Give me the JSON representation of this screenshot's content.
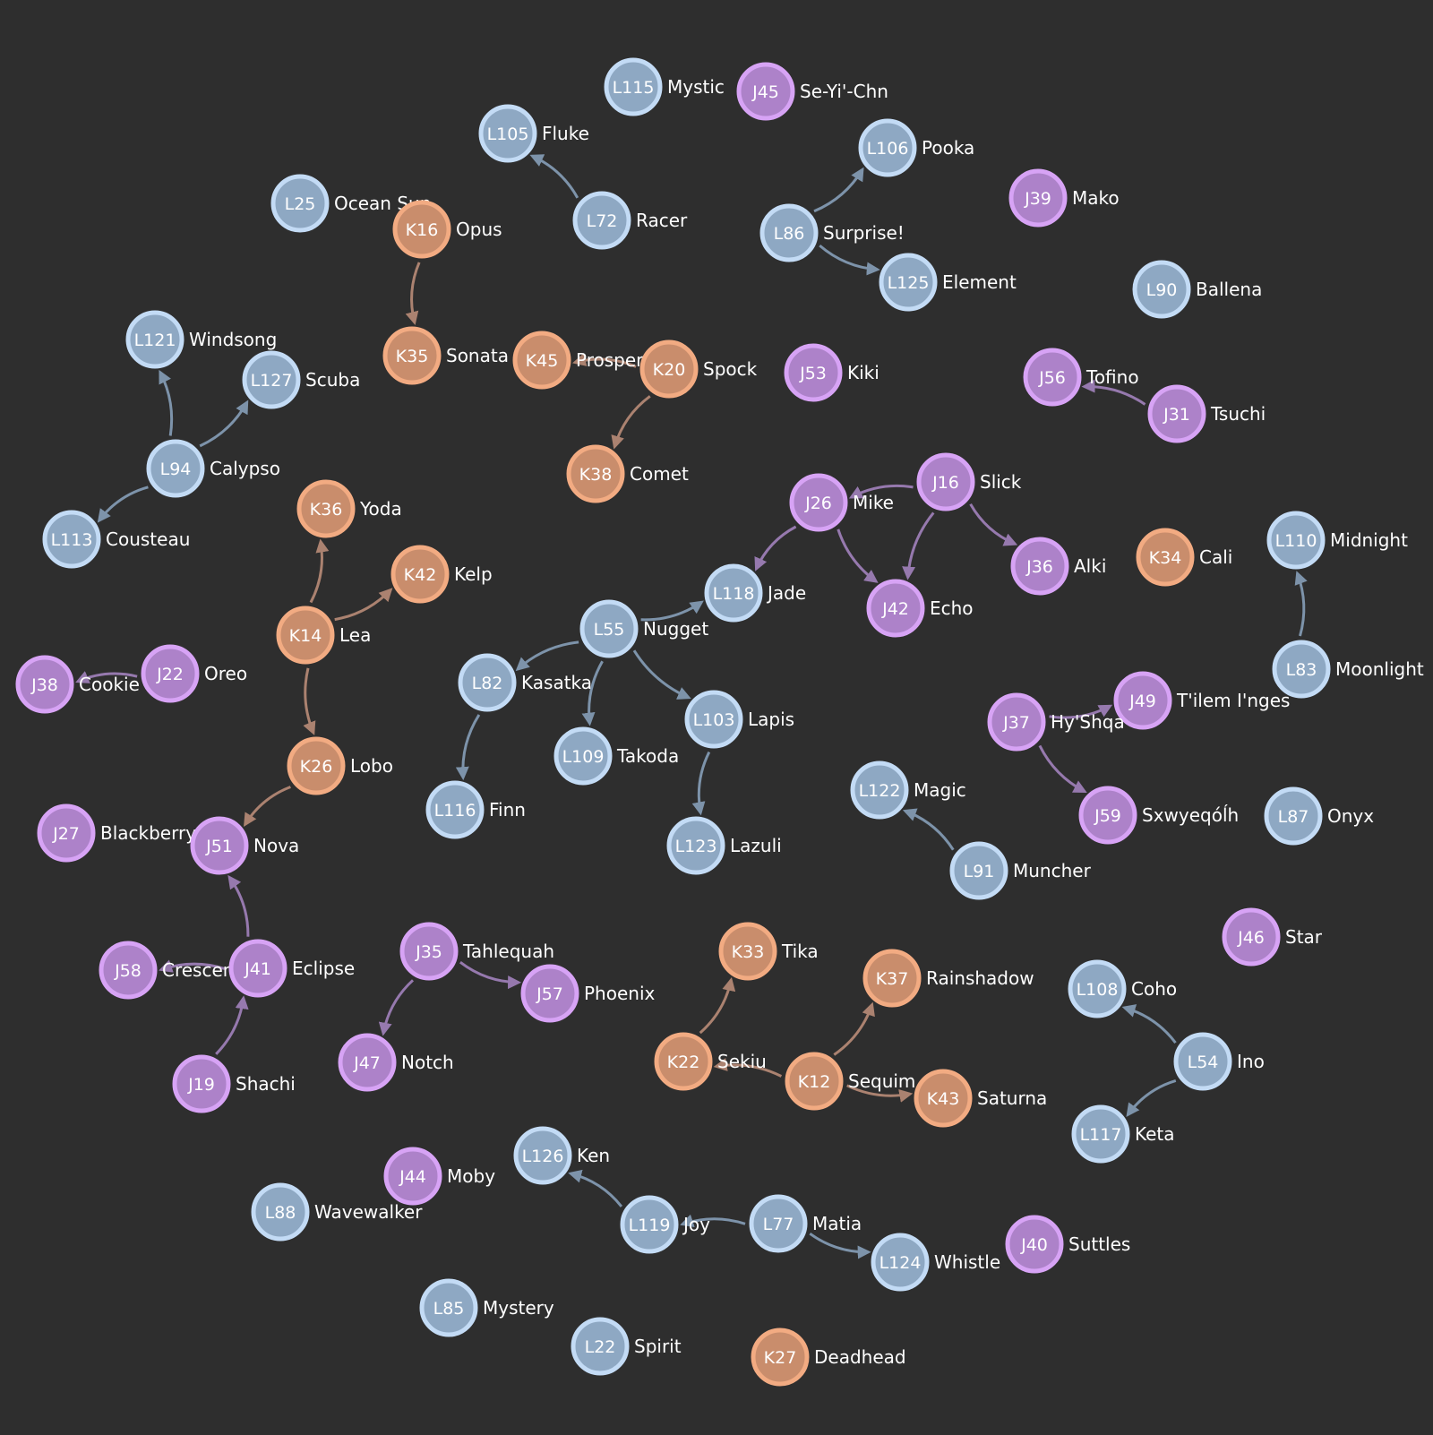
{
  "colors": {
    "background": "#2e2e2e",
    "L": {
      "fill": "#8ea8c3",
      "stroke": "#c3dbf5",
      "edge": "#7d93aa"
    },
    "K": {
      "fill": "#c98d6c",
      "stroke": "#f2ab82",
      "edge": "#ab8270"
    },
    "J": {
      "fill": "#ad82c9",
      "stroke": "#d7a3f5",
      "edge": "#9679ae"
    }
  },
  "nodes": [
    {
      "id": "L115",
      "name": "Mystic",
      "group": "L"
    },
    {
      "id": "J45",
      "name": "Se-Yi'-Chn",
      "group": "J"
    },
    {
      "id": "L105",
      "name": "Fluke",
      "group": "L"
    },
    {
      "id": "L106",
      "name": "Pooka",
      "group": "L"
    },
    {
      "id": "J39",
      "name": "Mako",
      "group": "J"
    },
    {
      "id": "L25",
      "name": "Ocean Sun",
      "group": "L"
    },
    {
      "id": "K16",
      "name": "Opus",
      "group": "K"
    },
    {
      "id": "L72",
      "name": "Racer",
      "group": "L"
    },
    {
      "id": "L86",
      "name": "Surprise!",
      "group": "L"
    },
    {
      "id": "L125",
      "name": "Element",
      "group": "L"
    },
    {
      "id": "L90",
      "name": "Ballena",
      "group": "L"
    },
    {
      "id": "L121",
      "name": "Windsong",
      "group": "L"
    },
    {
      "id": "K35",
      "name": "Sonata",
      "group": "K"
    },
    {
      "id": "K45",
      "name": "Prosper",
      "group": "K"
    },
    {
      "id": "K20",
      "name": "Spock",
      "group": "K"
    },
    {
      "id": "J53",
      "name": "Kiki",
      "group": "J"
    },
    {
      "id": "J56",
      "name": "Tofino",
      "group": "J"
    },
    {
      "id": "L127",
      "name": "Scuba",
      "group": "L"
    },
    {
      "id": "J31",
      "name": "Tsuchi",
      "group": "J"
    },
    {
      "id": "L94",
      "name": "Calypso",
      "group": "L"
    },
    {
      "id": "K38",
      "name": "Comet",
      "group": "K"
    },
    {
      "id": "J16",
      "name": "Slick",
      "group": "J"
    },
    {
      "id": "J26",
      "name": "Mike",
      "group": "J"
    },
    {
      "id": "K36",
      "name": "Yoda",
      "group": "K"
    },
    {
      "id": "L113",
      "name": "Cousteau",
      "group": "L"
    },
    {
      "id": "L110",
      "name": "Midnight",
      "group": "L"
    },
    {
      "id": "K34",
      "name": "Cali",
      "group": "K"
    },
    {
      "id": "J36",
      "name": "Alki",
      "group": "J"
    },
    {
      "id": "K42",
      "name": "Kelp",
      "group": "K"
    },
    {
      "id": "L118",
      "name": "Jade",
      "group": "L"
    },
    {
      "id": "J42",
      "name": "Echo",
      "group": "J"
    },
    {
      "id": "L55",
      "name": "Nugget",
      "group": "L"
    },
    {
      "id": "K14",
      "name": "Lea",
      "group": "K"
    },
    {
      "id": "L83",
      "name": "Moonlight",
      "group": "L"
    },
    {
      "id": "J22",
      "name": "Oreo",
      "group": "J"
    },
    {
      "id": "L82",
      "name": "Kasatka",
      "group": "L"
    },
    {
      "id": "J38",
      "name": "Cookie",
      "group": "J"
    },
    {
      "id": "J49",
      "name": "T'ilem I'nges",
      "group": "J"
    },
    {
      "id": "J37",
      "name": "Hy'Shqa",
      "group": "J"
    },
    {
      "id": "L103",
      "name": "Lapis",
      "group": "L"
    },
    {
      "id": "L109",
      "name": "Takoda",
      "group": "L"
    },
    {
      "id": "K26",
      "name": "Lobo",
      "group": "K"
    },
    {
      "id": "L122",
      "name": "Magic",
      "group": "L"
    },
    {
      "id": "L116",
      "name": "Finn",
      "group": "L"
    },
    {
      "id": "J59",
      "name": "Sxwyeqóĺh",
      "group": "J"
    },
    {
      "id": "L87",
      "name": "Onyx",
      "group": "L"
    },
    {
      "id": "J27",
      "name": "Blackberry",
      "group": "J"
    },
    {
      "id": "J51",
      "name": "Nova",
      "group": "J"
    },
    {
      "id": "L123",
      "name": "Lazuli",
      "group": "L"
    },
    {
      "id": "L91",
      "name": "Muncher",
      "group": "L"
    },
    {
      "id": "J46",
      "name": "Star",
      "group": "J"
    },
    {
      "id": "K33",
      "name": "Tika",
      "group": "K"
    },
    {
      "id": "J35",
      "name": "Tahlequah",
      "group": "J"
    },
    {
      "id": "J58",
      "name": "Crescent",
      "group": "J"
    },
    {
      "id": "J41",
      "name": "Eclipse",
      "group": "J"
    },
    {
      "id": "K37",
      "name": "Rainshadow",
      "group": "K"
    },
    {
      "id": "L108",
      "name": "Coho",
      "group": "L"
    },
    {
      "id": "J57",
      "name": "Phoenix",
      "group": "J"
    },
    {
      "id": "J47",
      "name": "Notch",
      "group": "J"
    },
    {
      "id": "K22",
      "name": "Sekiu",
      "group": "K"
    },
    {
      "id": "L54",
      "name": "Ino",
      "group": "L"
    },
    {
      "id": "K12",
      "name": "Sequim",
      "group": "K"
    },
    {
      "id": "J19",
      "name": "Shachi",
      "group": "J"
    },
    {
      "id": "K43",
      "name": "Saturna",
      "group": "K"
    },
    {
      "id": "L117",
      "name": "Keta",
      "group": "L"
    },
    {
      "id": "L126",
      "name": "Ken",
      "group": "L"
    },
    {
      "id": "J44",
      "name": "Moby",
      "group": "J"
    },
    {
      "id": "L88",
      "name": "Wavewalker",
      "group": "L"
    },
    {
      "id": "L119",
      "name": "Joy",
      "group": "L"
    },
    {
      "id": "L77",
      "name": "Matia",
      "group": "L"
    },
    {
      "id": "J40",
      "name": "Suttles",
      "group": "J"
    },
    {
      "id": "L124",
      "name": "Whistle",
      "group": "L"
    },
    {
      "id": "L85",
      "name": "Mystery",
      "group": "L"
    },
    {
      "id": "L22",
      "name": "Spirit",
      "group": "L"
    },
    {
      "id": "K27",
      "name": "Deadhead",
      "group": "K"
    }
  ],
  "edges": [
    {
      "from": "L72",
      "to": "L105"
    },
    {
      "from": "L86",
      "to": "L106"
    },
    {
      "from": "L86",
      "to": "L125"
    },
    {
      "from": "K16",
      "to": "K35"
    },
    {
      "from": "K20",
      "to": "K45"
    },
    {
      "from": "K20",
      "to": "K38"
    },
    {
      "from": "J31",
      "to": "J56"
    },
    {
      "from": "L94",
      "to": "L121"
    },
    {
      "from": "L94",
      "to": "L127"
    },
    {
      "from": "L94",
      "to": "L113"
    },
    {
      "from": "J16",
      "to": "J26"
    },
    {
      "from": "J16",
      "to": "J42"
    },
    {
      "from": "J16",
      "to": "J36"
    },
    {
      "from": "J26",
      "to": "J42"
    },
    {
      "from": "J26",
      "to": "L118"
    },
    {
      "from": "K14",
      "to": "K36"
    },
    {
      "from": "K14",
      "to": "K42"
    },
    {
      "from": "K14",
      "to": "K26"
    },
    {
      "from": "L55",
      "to": "L118"
    },
    {
      "from": "L55",
      "to": "L82"
    },
    {
      "from": "L55",
      "to": "L109"
    },
    {
      "from": "L55",
      "to": "L103"
    },
    {
      "from": "L83",
      "to": "L110"
    },
    {
      "from": "J22",
      "to": "J38"
    },
    {
      "from": "J37",
      "to": "J49"
    },
    {
      "from": "J37",
      "to": "J59"
    },
    {
      "from": "L82",
      "to": "L116"
    },
    {
      "from": "L103",
      "to": "L123"
    },
    {
      "from": "K26",
      "to": "J51"
    },
    {
      "from": "L91",
      "to": "L122"
    },
    {
      "from": "J41",
      "to": "J51"
    },
    {
      "from": "J41",
      "to": "J58"
    },
    {
      "from": "J19",
      "to": "J41"
    },
    {
      "from": "J35",
      "to": "J57"
    },
    {
      "from": "J35",
      "to": "J47"
    },
    {
      "from": "K22",
      "to": "K33"
    },
    {
      "from": "K12",
      "to": "K37"
    },
    {
      "from": "K12",
      "to": "K22"
    },
    {
      "from": "K12",
      "to": "K43"
    },
    {
      "from": "L54",
      "to": "L108"
    },
    {
      "from": "L54",
      "to": "L117"
    },
    {
      "from": "L119",
      "to": "L126"
    },
    {
      "from": "L77",
      "to": "L119"
    },
    {
      "from": "L77",
      "to": "L124"
    }
  ]
}
